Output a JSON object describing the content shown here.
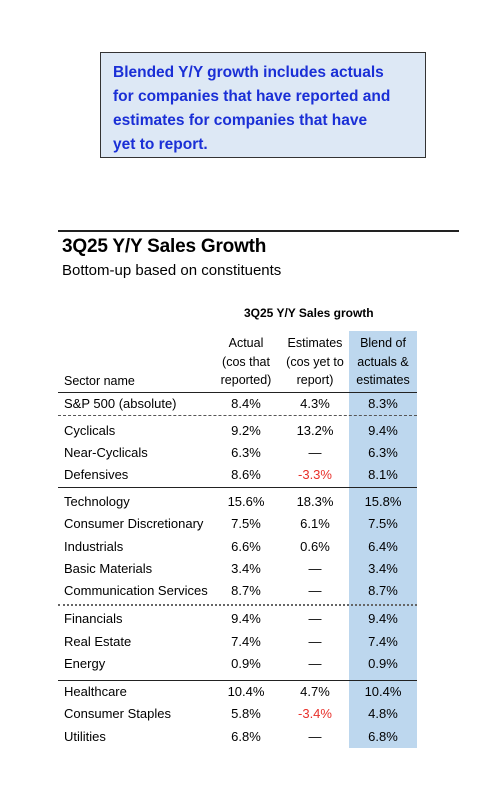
{
  "callout": {
    "line1": "Blended Y/Y growth includes actuals",
    "line2": "for companies that have reported and",
    "line3": "estimates for companies that have",
    "line4": "yet to report."
  },
  "title": "3Q25 Y/Y Sales Growth",
  "subtitle": "Bottom-up based on constituents",
  "group_header": "3Q25 Y/Y Sales growth",
  "columns": {
    "sector": "Sector name",
    "actual": [
      "Actual",
      "(cos that",
      "reported)"
    ],
    "estimates": [
      "Estimates",
      "(cos yet to",
      "report)"
    ],
    "blend": [
      "Blend of",
      "actuals &",
      "estimates"
    ]
  },
  "rows": [
    {
      "name": "S&P 500 (absolute)",
      "actual": "8.4%",
      "est": "4.3%",
      "blend": "8.3%"
    },
    {
      "name": "Cyclicals",
      "actual": "9.2%",
      "est": "13.2%",
      "blend": "9.4%"
    },
    {
      "name": "Near-Cyclicals",
      "actual": "6.3%",
      "est": "—",
      "blend": "6.3%"
    },
    {
      "name": "Defensives",
      "actual": "8.6%",
      "est": "-3.3%",
      "blend": "8.1%"
    },
    {
      "name": "Technology",
      "actual": "15.6%",
      "est": "18.3%",
      "blend": "15.8%"
    },
    {
      "name": "Consumer Discretionary",
      "actual": "7.5%",
      "est": "6.1%",
      "blend": "7.5%"
    },
    {
      "name": "Industrials",
      "actual": "6.6%",
      "est": "0.6%",
      "blend": "6.4%"
    },
    {
      "name": "Basic Materials",
      "actual": "3.4%",
      "est": "—",
      "blend": "3.4%"
    },
    {
      "name": "Communication Services",
      "actual": "8.7%",
      "est": "—",
      "blend": "8.7%"
    },
    {
      "name": "Financials",
      "actual": "9.4%",
      "est": "—",
      "blend": "9.4%"
    },
    {
      "name": "Real Estate",
      "actual": "7.4%",
      "est": "—",
      "blend": "7.4%"
    },
    {
      "name": "Energy",
      "actual": "0.9%",
      "est": "—",
      "blend": "0.9%"
    },
    {
      "name": "Healthcare",
      "actual": "10.4%",
      "est": "4.7%",
      "blend": "10.4%"
    },
    {
      "name": "Consumer Staples",
      "actual": "5.8%",
      "est": "-3.4%",
      "blend": "4.8%"
    },
    {
      "name": "Utilities",
      "actual": "6.8%",
      "est": "—",
      "blend": "6.8%"
    }
  ],
  "colors": {
    "callout_text": "#1a2fd6",
    "callout_bg": "#dde8f5",
    "blend_column_bg": "#bdd7ee",
    "negative_value": "#e8302a"
  }
}
